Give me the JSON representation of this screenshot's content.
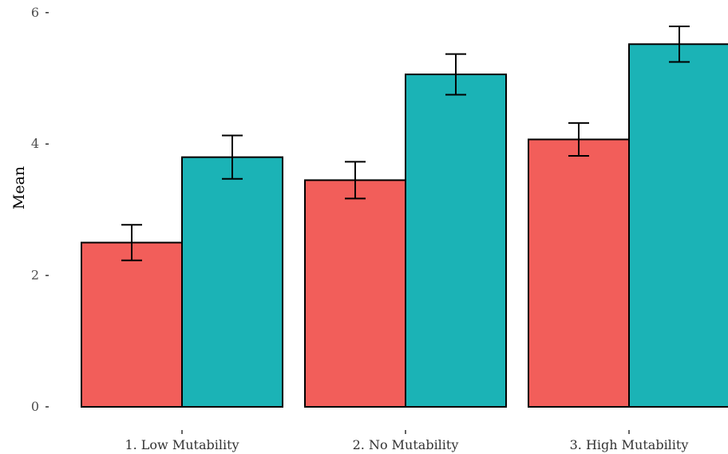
{
  "chart_data": {
    "type": "bar",
    "categories": [
      "1. Low Mutability",
      "2. No Mutability",
      "3. High Mutability"
    ],
    "series": [
      {
        "values": [
          2.5,
          3.45,
          4.07
        ],
        "error": [
          0.27,
          0.28,
          0.25
        ],
        "color": "#F25E5A"
      },
      {
        "values": [
          3.8,
          5.06,
          5.52
        ],
        "error": [
          0.33,
          0.31,
          0.27
        ],
        "color": "#1BB3B6"
      }
    ],
    "xlabel": "",
    "ylabel": "Mean",
    "yticks": [
      0,
      2,
      4,
      6
    ],
    "ylim": [
      0,
      6
    ],
    "grid": false,
    "legend": "none"
  }
}
